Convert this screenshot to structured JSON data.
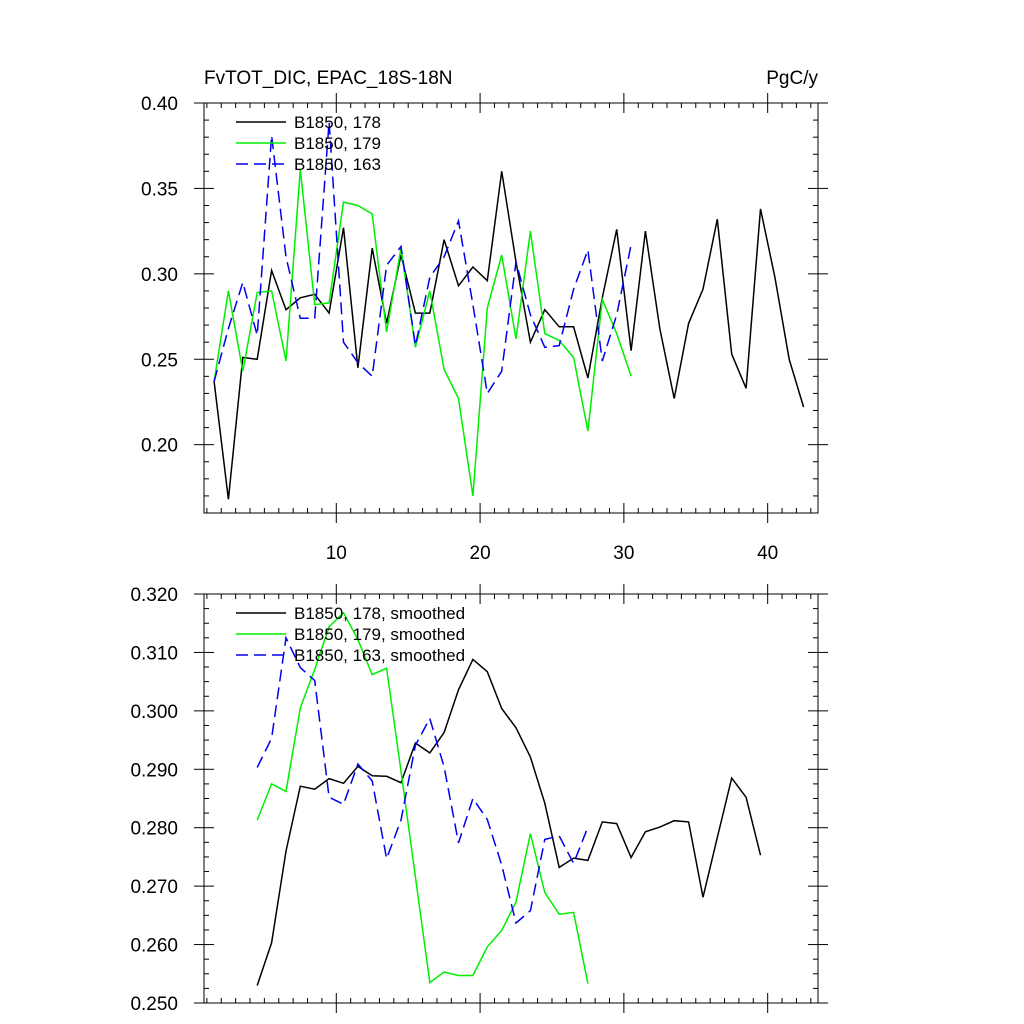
{
  "chart_data": [
    {
      "type": "line",
      "title": "FvTOT_DIC, EPAC_18S-18N",
      "units": "PgC/y",
      "xlim": [
        0.8,
        43.5
      ],
      "ylim": [
        0.16,
        0.4
      ],
      "xticks": [
        10,
        20,
        30,
        40
      ],
      "yticks": [
        0.2,
        0.25,
        0.3,
        0.35,
        0.4
      ],
      "ytick_labels": [
        "0.20",
        "0.25",
        "0.30",
        "0.35",
        "0.40"
      ],
      "legend_position": "top-left",
      "series": [
        {
          "name": "B1850, 178",
          "color": "#000000",
          "dash": "solid",
          "x": [
            1.5,
            2.5,
            3.5,
            4.5,
            5.5,
            6.5,
            7.5,
            8.5,
            9.5,
            10.5,
            11.5,
            12.5,
            13.5,
            14.5,
            15.5,
            16.5,
            17.5,
            18.5,
            19.5,
            20.5,
            21.5,
            22.5,
            23.5,
            24.5,
            25.5,
            26.5,
            27.5,
            28.5,
            29.5,
            30.5,
            31.5,
            32.5,
            33.5,
            34.5,
            35.5,
            36.5,
            37.5,
            38.5,
            39.5,
            40.5,
            41.5,
            42.5
          ],
          "y": [
            0.237,
            0.168,
            0.251,
            0.25,
            0.302,
            0.279,
            0.286,
            0.288,
            0.277,
            0.327,
            0.245,
            0.315,
            0.271,
            0.311,
            0.277,
            0.277,
            0.32,
            0.293,
            0.304,
            0.296,
            0.36,
            0.307,
            0.26,
            0.279,
            0.269,
            0.269,
            0.239,
            0.286,
            0.326,
            0.255,
            0.325,
            0.268,
            0.227,
            0.271,
            0.291,
            0.332,
            0.253,
            0.233,
            0.338,
            0.298,
            0.25,
            0.222
          ]
        },
        {
          "name": "B1850, 179",
          "color": "#00ee00",
          "dash": "solid",
          "x": [
            1.5,
            2.5,
            3.5,
            4.5,
            5.5,
            6.5,
            7.5,
            8.5,
            9.5,
            10.5,
            11.5,
            12.5,
            13.5,
            14.5,
            15.5,
            16.5,
            17.5,
            18.5,
            19.5,
            20.5,
            21.5,
            22.5,
            23.5,
            24.5,
            25.5,
            26.5,
            27.5,
            28.5,
            29.5,
            30.5
          ],
          "y": [
            0.237,
            0.29,
            0.243,
            0.289,
            0.29,
            0.249,
            0.361,
            0.282,
            0.283,
            0.342,
            0.34,
            0.335,
            0.266,
            0.315,
            0.257,
            0.29,
            0.244,
            0.227,
            0.17,
            0.28,
            0.311,
            0.262,
            0.325,
            0.265,
            0.261,
            0.251,
            0.208,
            0.285,
            0.265,
            0.24
          ]
        },
        {
          "name": "B1850, 163",
          "color": "#0000ee",
          "dash": "dashed",
          "x": [
            1.5,
            2.5,
            3.5,
            4.5,
            5.5,
            6.5,
            7.5,
            8.5,
            9.5,
            10.5,
            11.5,
            12.5,
            13.5,
            14.5,
            15.5,
            16.5,
            17.5,
            18.5,
            19.5,
            20.5,
            21.5,
            22.5,
            23.5,
            24.5,
            25.5,
            26.5,
            27.5,
            28.5,
            29.5,
            30.5
          ],
          "y": [
            0.237,
            0.268,
            0.295,
            0.264,
            0.381,
            0.31,
            0.274,
            0.274,
            0.389,
            0.26,
            0.248,
            0.24,
            0.305,
            0.316,
            0.258,
            0.298,
            0.31,
            0.331,
            0.282,
            0.23,
            0.243,
            0.307,
            0.276,
            0.257,
            0.258,
            0.291,
            0.314,
            0.249,
            0.276,
            0.317
          ]
        }
      ]
    },
    {
      "type": "line",
      "title": "",
      "xlim": [
        0.8,
        43.5
      ],
      "ylim": [
        0.25,
        0.32
      ],
      "xticks": [
        10,
        20,
        30,
        40
      ],
      "yticks": [
        0.25,
        0.26,
        0.27,
        0.28,
        0.29,
        0.3,
        0.31,
        0.32
      ],
      "ytick_labels": [
        "0.250",
        "0.260",
        "0.270",
        "0.280",
        "0.290",
        "0.300",
        "0.310",
        "0.320"
      ],
      "legend_position": "top-left",
      "series": [
        {
          "name": "B1850, 178, smoothed",
          "color": "#000000",
          "dash": "solid",
          "x": [
            4.5,
            5.5,
            6.5,
            7.5,
            8.5,
            9.5,
            10.5,
            11.5,
            12.5,
            13.5,
            14.5,
            15.5,
            16.5,
            17.5,
            18.5,
            19.5,
            20.5,
            21.5,
            22.5,
            23.5,
            24.5,
            25.5,
            26.5,
            27.5,
            28.5,
            29.5,
            30.5,
            31.5,
            32.5,
            33.5,
            34.5,
            35.5,
            36.5,
            37.5,
            38.5,
            39.5
          ],
          "y": [
            0.253,
            0.2603,
            0.276,
            0.2871,
            0.2866,
            0.2884,
            0.2876,
            0.2905,
            0.2889,
            0.2888,
            0.2877,
            0.2945,
            0.2928,
            0.2963,
            0.3036,
            0.3088,
            0.3067,
            0.3004,
            0.2971,
            0.2921,
            0.2842,
            0.2732,
            0.2748,
            0.2744,
            0.281,
            0.2807,
            0.2749,
            0.2793,
            0.2801,
            0.2812,
            0.281,
            0.2681,
            0.2783,
            0.2885,
            0.2852,
            0.2753
          ]
        },
        {
          "name": "B1850, 179, smoothed",
          "color": "#00ee00",
          "dash": "solid",
          "x": [
            4.5,
            5.5,
            6.5,
            7.5,
            8.5,
            9.5,
            10.5,
            11.5,
            12.5,
            13.5,
            14.5,
            15.5,
            16.5,
            17.5,
            18.5,
            19.5,
            20.5,
            21.5,
            22.5,
            23.5,
            24.5,
            25.5,
            26.5,
            27.5
          ],
          "y": [
            0.2813,
            0.2875,
            0.2862,
            0.3005,
            0.3071,
            0.3144,
            0.3168,
            0.3122,
            0.3062,
            0.3073,
            0.2897,
            0.2716,
            0.2535,
            0.2553,
            0.2547,
            0.2547,
            0.2596,
            0.2624,
            0.2673,
            0.279,
            0.2689,
            0.2652,
            0.2655,
            0.2533
          ]
        },
        {
          "name": "B1850, 163, smoothed",
          "color": "#0000ee",
          "dash": "dashed",
          "x": [
            4.5,
            5.5,
            6.5,
            7.5,
            8.5,
            9.5,
            10.5,
            11.5,
            12.5,
            13.5,
            14.5,
            15.5,
            16.5,
            17.5,
            18.5,
            19.5,
            20.5,
            21.5,
            22.5,
            23.5,
            24.5,
            25.5,
            26.5,
            27.5
          ],
          "y": [
            0.2903,
            0.2953,
            0.3125,
            0.3074,
            0.3052,
            0.2852,
            0.284,
            0.2909,
            0.288,
            0.2747,
            0.2813,
            0.2941,
            0.2987,
            0.2904,
            0.2774,
            0.285,
            0.2814,
            0.2736,
            0.2637,
            0.2658,
            0.278,
            0.2786,
            0.2739,
            0.2801
          ]
        }
      ]
    }
  ]
}
